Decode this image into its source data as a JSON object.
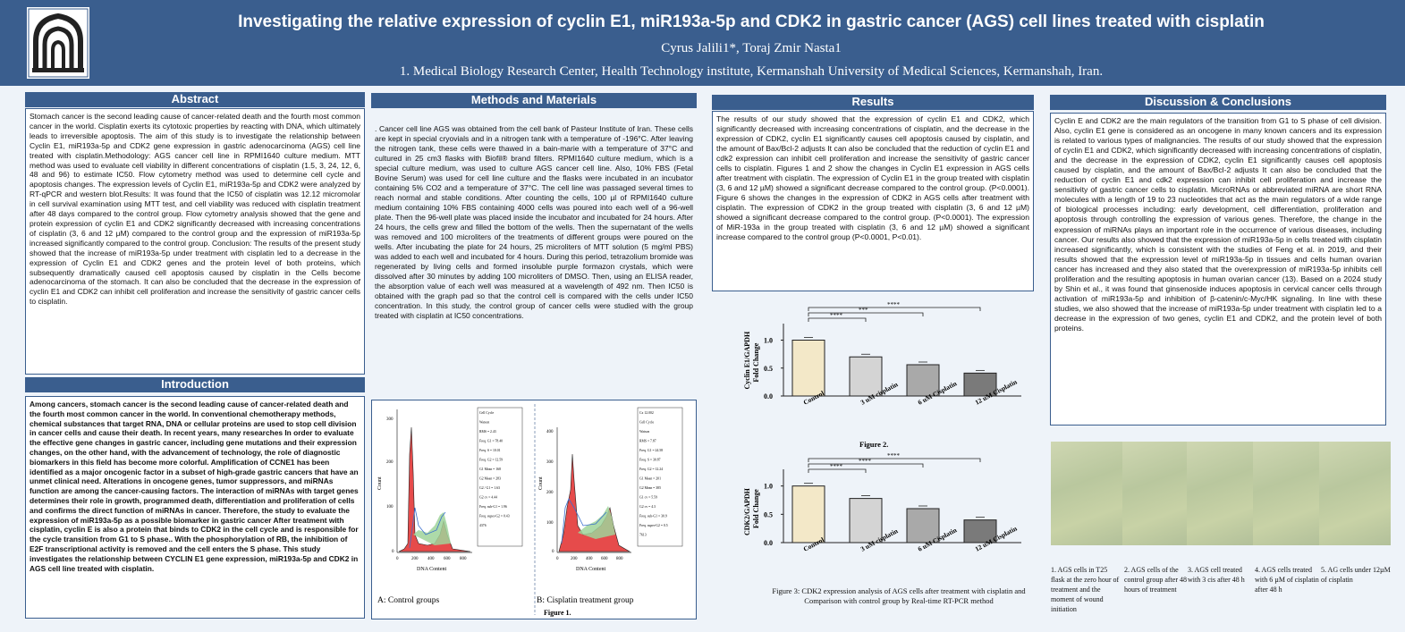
{
  "header": {
    "title": "Investigating the relative expression of cyclin E1, miR193a-5p and CDK2 in gastric cancer (AGS) cell lines treated with cisplatin",
    "authors": "Cyrus Jalili1*, Toraj Zmir Nasta1",
    "affiliation": "1. Medical Biology Research Center, Health Technology institute, Kermanshah University of Medical Sciences, Kermanshah, Iran."
  },
  "abstract": {
    "heading": "Abstract",
    "text": "Stomach cancer is the second leading cause of cancer-related death and the fourth most common cancer in the world. Cisplatin exerts its cytotoxic properties by reacting with DNA, which ultimately leads to irreversible apoptosis. The aim of this study is to investigate the relationship between Cyclin E1, miR193a-5p and CDK2 gene expression in gastric adenocarcinoma (AGS) cell line treated with cisplatin.Methodology: AGS cancer cell line in RPMI1640 culture medium. MTT method was used to evaluate cell viability in different concentrations of cisplatin (1.5, 3, 24, 12, 6, 48 and 96) to estimate IC50. Flow cytometry method was used to determine cell cycle and apoptosis changes. The expression levels of Cyclin E1, miR193a-5p and CDK2 were analyzed by RT-qPCR and western blot.Results: It was found that the IC50 of cisplatin was 12.12 micromolar in cell survival examination using MTT test, and cell viability was reduced with cisplatin treatment after 48 days compared to the control group. Flow cytometry analysis showed that the gene and protein expression of cyclin E1 and CDK2 significantly decreased with increasing concentrations of cisplatin (3, 6 and 12 μM) compared to the control group and the expression of miR193a-5p increased significantly compared to the control group. Conclusion: The results of the present study showed that the increase of miR193a-5p under treatment with cisplatin led to a decrease in the expression of Cyclin E1 and CDK2 genes and the protein level of both proteins, which subsequently dramatically caused cell apoptosis caused by cisplatin in the Cells become adenocarcinoma of the stomach. It can also be concluded that the decrease in the expression of cyclin E1 and CDK2 can inhibit cell proliferation and increase the sensitivity of gastric cancer cells to cisplatin."
  },
  "introduction": {
    "heading": "Introduction",
    "text": "Among cancers, stomach cancer is the second leading cause of cancer-related death and the fourth most common cancer in the world. In conventional chemotherapy methods, chemical substances that target RNA, DNA or cellular proteins are used to stop cell division in cancer cells and cause their death. In recent years, many researches In order to evaluate the effective gene changes in gastric cancer, including gene mutations and their expression changes, on the other hand, with the advancement of technology, the role of diagnostic biomarkers in this field has become more colorful. Amplification of CCNE1 has been identified as a major oncogenic factor in a subset of high-grade gastric cancers that have an unmet clinical need. Alterations in oncogene genes, tumor suppressors, and miRNAs function are among the cancer-causing factors. The interaction of miRNAs with target genes determines their role in growth, programmed death, differentiation and proliferation of cells and confirms the direct function of miRNAs in cancer. Therefore, the study to evaluate the expression of miR193a-5p as a possible biomarker in gastric cancer After treatment with cisplatin, cyclin E is also a protein that binds to CDK2 in the cell cycle and is responsible for the cycle transition from G1 to S phase.. With the phosphorylation of RB, the inhibition of E2F transcriptional activity is removed and the cell enters the S phase. This study investigates the relationship between CYCLIN E1 gene expression, miR193a-5p and CDK2 in AGS cell line treated with cisplatin."
  },
  "methods": {
    "heading": "Methods and Materials",
    "text": ". Cancer cell line AGS was obtained from the cell bank of Pasteur Institute of Iran. These cells are kept in special cryovials and in a nitrogen tank with a temperature of -196°C. After leaving the nitrogen tank, these cells were thawed in a bain-marie with a temperature of 37°C and cultured in 25 cm3 flasks with Biofil® brand filters. RPMI1640 culture medium, which is a special culture medium, was used to culture AGS cancer cell line. Also, 10% FBS (Fetal Bovine Serum) was used for cell line culture and the flasks were incubated in an incubator containing 5% CO2 and a temperature of 37°C. The cell line was passaged several times to reach normal and stable conditions. After counting the cells, 100 µl of RPMI1640 culture medium containing 10% FBS containing 4000 cells was poured into each well of a 96-well plate. Then the 96-well plate was placed inside the incubator and incubated for 24 hours. After 24 hours, the cells grew and filled the bottom of the wells. Then the supernatant of the wells was removed and 100 microliters of the treatments of different groups were poured on the wells. After incubating the plate for 24 hours, 25 microliters of MTT solution (5 mg/ml PBS) was added to each well and incubated for 4 hours. During this period, tetrazolium bromide was regenerated by living cells and formed insoluble purple formazon crystals, which were dissolved after 30 minutes by adding 100 microliters of DMSO. Then, using an ELISA reader, the absorption value of each well was measured at a wavelength of 492 nm. Then IC50 is obtained with the graph pad so that the control cell is compared with the cells under IC50 concentration. In this study, the control group of cancer cells were studied with the group treated with cisplatin at IC50 concentrations."
  },
  "results": {
    "heading": "Results",
    "text": "The results of our study showed that the expression of cyclin E1 and CDK2, which significantly decreased with increasing concentrations of cisplatin, and the decrease in the expression of CDK2, cyclin E1 significantly causes cell apoptosis caused by cisplatin, and the amount of Bax/Bcl-2 adjusts It can also be concluded that the reduction of cyclin E1 and cdk2 expression can inhibit cell proliferation and increase the sensitivity of gastric cancer cells to cisplatin. Figures 1 and 2 show the changes in Cyclin E1 expression in AGS cells after treatment with cisplatin. The expression of Cyclin E1 in the group treated with cisplatin (3, 6 and 12 µM) showed a significant decrease compared to the control group. (P<0.0001). Figure 6 shows the changes in the expression of CDK2 in AGS cells after treatment with cisplatin. The expression of CDK2 in the group treated with cisplatin (3, 6 and 12 µM) showed a significant decrease compared to the control group. (P<0.0001). The expression of MiR-193a in the group treated with cisplatin (3, 6 and 12 µM) showed a significant increase compared to the control group (P<0.0001, P<0.01)."
  },
  "discussion": {
    "heading": "Discussion  & Conclusions",
    "text": "Cyclin E and CDK2 are the main regulators of the transition from G1 to S phase of cell division. Also, cyclin E1 gene is considered as an oncogene in many known cancers and its expression is related to various types of malignancies. The results of our study showed that the expression of cyclin E1 and CDK2, which significantly decreased with increasing concentrations of cisplatin, and the decrease in the expression of CDK2, cyclin E1 significantly causes cell apoptosis caused by cisplatin, and the amount of Bax/Bcl-2 adjusts It can also be concluded that the reduction of cyclin E1 and cdk2 expression can inhibit cell proliferation and increase the sensitivity of gastric cancer cells to cisplatin. MicroRNAs or abbreviated miRNA are short RNA molecules with a length of 19 to 23 nucleotides that act as the main regulators of a wide range of biological processes including: early development, cell differentiation, proliferation and apoptosis through controlling the expression of various genes. Therefore, the change in the expression of miRNAs plays an important role in the occurrence of various diseases, including cancer. Our results also showed that the expression of miR193a-5p in cells treated with cisplatin increased significantly, which is consistent with the studies of Feng et al. in 2019, and their results showed that the expression level of miR193a-5p in tissues and cells human ovarian cancer has increased and they also stated that the overexpression of miR193a-5p inhibits cell proliferation and the resulting apoptosis in human ovarian cancer (13). Based on a 2024 study by Shin et al., it was found that ginsenoside induces apoptosis in cervical cancer cells through activation of miR193a-5p and inhibition of β-catenin/c-Myc/HK signaling. In line with these studies, we also showed that the increase of miR193a-5p under treatment with cisplatin led to a decrease in the expression of two genes, cyclin E1 and CDK2, and the protein level of both proteins."
  },
  "figure1": {
    "caption": "Figure 1.",
    "panel_a_label": "A: Control groups",
    "panel_b_label": "B: Cisplatin treatment group",
    "xaxis_label": "DNA Content",
    "yaxis_label": "Count",
    "panel_a_stats": [
      "Cell Cycle",
      "Watson",
      "RMS = 2.43",
      "Freq. G1 = 78.40",
      "Freq. S = 10.01",
      "Freq. G2 = 12.59",
      "G1 Mean = 168",
      "G2 Mean = 283",
      "G2 / G1 = 1.63",
      "G2 cv = 4.44",
      "Freq. sub-G1 = 1.96",
      "Freq. super-G2 = 0.43",
      "4376"
    ],
    "panel_b_stats": [
      "Cx 12.002",
      "Cell Cycle",
      "Watson",
      "RMS = 7.87",
      "Freq. G1 = 24.58",
      "Freq. S = 30.87",
      "Freq. G2 = 12.24",
      "G1 Mean = 201",
      "G2 Mean = 385",
      "G1 cv = 5.59",
      "G2 cv = 4.3",
      "Freq. sub-G1 = 30.9",
      "Freq. super-G2 = 0.5",
      "7613"
    ],
    "yticks": [
      "300",
      "200",
      "100",
      "0"
    ],
    "xticks": [
      "0",
      "200",
      "400",
      "600",
      "800"
    ],
    "panel_b_yticks": [
      "400",
      "300",
      "200",
      "100",
      "0"
    ]
  },
  "figure2": {
    "caption": "Figure 2.",
    "ylabel": "Cyclin E1/GAPDH Fold Change",
    "categories": [
      "Control",
      "3 uM cisplatin",
      "6 uM Cisplatin",
      "12 uM Cisplatin"
    ],
    "values": [
      1.0,
      0.7,
      0.56,
      0.41
    ],
    "yticks": [
      "1.0",
      "0.5",
      "0.0"
    ],
    "sig": [
      "****",
      "***",
      "****"
    ]
  },
  "figure3": {
    "caption": "Figure 3: CDK2 expression analysis of AGS cells after treatment with cisplatin and Comparison with control group by Real-time RT-PCR method",
    "ylabel": "CDK2/GAPDH Fold Change",
    "categories": [
      "Control",
      "3 uM cisplatin",
      "6 uM Cisplatin",
      "12 uM Cisplatin"
    ],
    "values": [
      1.0,
      0.78,
      0.6,
      0.4
    ],
    "yticks": [
      "1.0",
      "0.5",
      "0.0"
    ],
    "sig": [
      "****",
      "****",
      "****"
    ]
  },
  "microscopy": {
    "captions": [
      "1. AGS cells in T25 flask at the zero hour of treatment and the moment of wound initiation",
      "2. AGS cells of the control group after 48 hours of treatment",
      "3. AGS cell treated with 3 cis after 48 h",
      "4. AGS cells treated with 6 µM of cisplatin after 48 h",
      "5. AG cells under 12µM of cisplatin"
    ]
  },
  "chart_data": [
    {
      "type": "bar",
      "title": "Figure 2.",
      "categories": [
        "Control",
        "3 uM cisplatin",
        "6 uM Cisplatin",
        "12 uM Cisplatin"
      ],
      "values": [
        1.0,
        0.7,
        0.56,
        0.41
      ],
      "ylabel": "Cyclin E1/GAPDH Fold Change",
      "ylim": [
        0,
        1.2
      ]
    },
    {
      "type": "bar",
      "title": "Figure 3",
      "categories": [
        "Control",
        "3 uM cisplatin",
        "6 uM Cisplatin",
        "12 uM Cisplatin"
      ],
      "values": [
        1.0,
        0.78,
        0.6,
        0.4
      ],
      "ylabel": "CDK2/GAPDH Fold Change",
      "ylim": [
        0,
        1.2
      ]
    }
  ],
  "colors": {
    "header": "#3a5e8e",
    "bar_colors": [
      "#f3e8c8",
      "#d4d4d4",
      "#a9a9a9",
      "#7a7a7a"
    ]
  }
}
